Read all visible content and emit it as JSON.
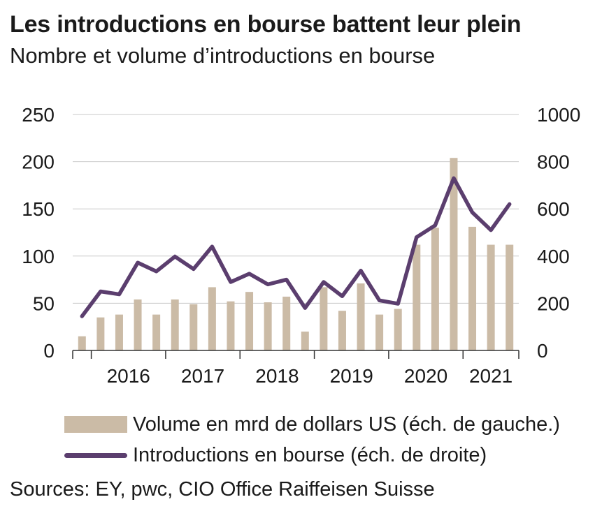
{
  "title": "Les introductions en bourse battent leur plein",
  "subtitle": "Nombre et volume d’introductions en bourse",
  "source": "Sources: EY, pwc, CIO Office Raiffeisen Suisse",
  "colors": {
    "bar": "#cbbba6",
    "line": "#5b3e6e",
    "grid": "#c8c8c8"
  },
  "chart_data": {
    "type": "bar+line",
    "x": [
      "2015-Q4",
      "2016-Q1",
      "2016-Q2",
      "2016-Q3",
      "2016-Q4",
      "2017-Q1",
      "2017-Q2",
      "2017-Q3",
      "2017-Q4",
      "2018-Q1",
      "2018-Q2",
      "2018-Q3",
      "2018-Q4",
      "2019-Q1",
      "2019-Q2",
      "2019-Q3",
      "2019-Q4",
      "2020-Q1",
      "2020-Q2",
      "2020-Q3",
      "2020-Q4",
      "2021-Q1",
      "2021-Q2",
      "2021-Q3"
    ],
    "year_labels": [
      "2016",
      "2017",
      "2018",
      "2019",
      "2020",
      "2021"
    ],
    "series": [
      {
        "name": "Volume en mrd de dollars US (éch. de gauche.)",
        "type": "bar",
        "axis": "left",
        "values": [
          15,
          35,
          38,
          54,
          38,
          54,
          49,
          67,
          52,
          62,
          51,
          57,
          20,
          67,
          42,
          71,
          38,
          44,
          112,
          130,
          204,
          131,
          112,
          112
        ]
      },
      {
        "name": "Introductions en bourse (éch. de droite)",
        "type": "line",
        "axis": "right",
        "values": [
          145,
          250,
          238,
          372,
          335,
          398,
          345,
          440,
          290,
          325,
          280,
          300,
          180,
          290,
          230,
          338,
          212,
          198,
          480,
          530,
          730,
          585,
          510,
          620
        ]
      }
    ],
    "left_ticks": [
      "250",
      "200",
      "150",
      "100",
      "50",
      "0"
    ],
    "right_ticks": [
      "1000",
      "800",
      "600",
      "400",
      "200",
      "0"
    ],
    "ylim_left": [
      0,
      250
    ],
    "ylim_right": [
      0,
      1000
    ],
    "grid": true,
    "legend_position": "bottom"
  }
}
